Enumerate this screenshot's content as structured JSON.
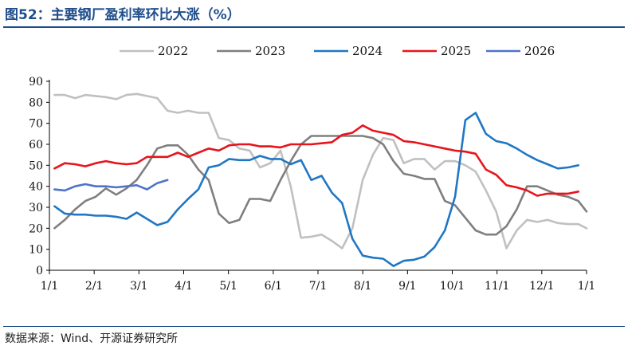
{
  "figure": {
    "title": "图52：主要钢厂盈利率环比大涨（%）",
    "source": "数据来源：Wind、开源证券研究所"
  },
  "chart_data": {
    "type": "line",
    "title": "",
    "xlabel": "",
    "ylabel": "",
    "x_tick_labels": [
      "1/1",
      "2/1",
      "3/1",
      "4/1",
      "5/1",
      "6/1",
      "7/1",
      "8/1",
      "9/1",
      "10/1",
      "11/1",
      "12/1",
      "1/1"
    ],
    "y_ticks": [
      0,
      10,
      20,
      30,
      40,
      50,
      60,
      70,
      80,
      90
    ],
    "ylim": [
      0,
      90
    ],
    "x_unit": "week of year",
    "xlim": [
      0,
      52.3
    ],
    "grid": false,
    "legend_position": "top",
    "series": [
      {
        "name": "2022",
        "color": "#c0c0c0",
        "points": [
          [
            0.5,
            83.5
          ],
          [
            1.5,
            83.5
          ],
          [
            2.5,
            82
          ],
          [
            3.5,
            83.5
          ],
          [
            4.5,
            83
          ],
          [
            5.5,
            82.5
          ],
          [
            6.5,
            81.5
          ],
          [
            7.5,
            83.5
          ],
          [
            8.5,
            84
          ],
          [
            9.5,
            83
          ],
          [
            10.5,
            82
          ],
          [
            11.5,
            76
          ],
          [
            12.5,
            75
          ],
          [
            13.5,
            76
          ],
          [
            14.5,
            75
          ],
          [
            15.5,
            75
          ],
          [
            16.5,
            63
          ],
          [
            17.5,
            62
          ],
          [
            18.5,
            58
          ],
          [
            19.5,
            57
          ],
          [
            20.5,
            49
          ],
          [
            21.5,
            51
          ],
          [
            22.5,
            57
          ],
          [
            23.5,
            40
          ],
          [
            24.5,
            15.5
          ],
          [
            25.5,
            16
          ],
          [
            26.5,
            17
          ],
          [
            27.5,
            14
          ],
          [
            28.5,
            10.5
          ],
          [
            29.5,
            20
          ],
          [
            30.5,
            43
          ],
          [
            31.5,
            55
          ],
          [
            32.5,
            63
          ],
          [
            33.5,
            62
          ],
          [
            34.5,
            51
          ],
          [
            35.5,
            53
          ],
          [
            36.5,
            53
          ],
          [
            37.5,
            48
          ],
          [
            38.5,
            52
          ],
          [
            39.5,
            52
          ],
          [
            40.5,
            50
          ],
          [
            41.5,
            47
          ],
          [
            42.5,
            38
          ],
          [
            43.5,
            28
          ],
          [
            44.5,
            10.5
          ],
          [
            45.5,
            19
          ],
          [
            46.5,
            24
          ],
          [
            47.5,
            23
          ],
          [
            48.5,
            24
          ],
          [
            49.5,
            22.5
          ],
          [
            50.5,
            22
          ],
          [
            51.5,
            22
          ],
          [
            52.3,
            20
          ]
        ]
      },
      {
        "name": "2023",
        "color": "#7f7f7f",
        "points": [
          [
            0.5,
            20
          ],
          [
            1.5,
            24
          ],
          [
            2.5,
            29
          ],
          [
            3.5,
            33
          ],
          [
            4.5,
            35
          ],
          [
            5.5,
            39
          ],
          [
            6.5,
            36
          ],
          [
            7.5,
            39
          ],
          [
            8.5,
            43
          ],
          [
            9.5,
            50
          ],
          [
            10.5,
            58
          ],
          [
            11.5,
            59.5
          ],
          [
            12.5,
            59.5
          ],
          [
            13.5,
            55
          ],
          [
            14.5,
            48
          ],
          [
            15.5,
            43
          ],
          [
            16.5,
            27
          ],
          [
            17.5,
            22.5
          ],
          [
            18.5,
            24
          ],
          [
            19.5,
            34
          ],
          [
            20.5,
            34
          ],
          [
            21.5,
            33
          ],
          [
            22.5,
            43
          ],
          [
            23.5,
            52
          ],
          [
            24.5,
            60
          ],
          [
            25.5,
            64
          ],
          [
            26.5,
            64
          ],
          [
            27.5,
            64
          ],
          [
            28.5,
            64
          ],
          [
            29.5,
            64
          ],
          [
            30.5,
            64
          ],
          [
            31.5,
            63
          ],
          [
            32.5,
            60
          ],
          [
            33.5,
            52
          ],
          [
            34.5,
            46
          ],
          [
            35.5,
            45
          ],
          [
            36.5,
            43.5
          ],
          [
            37.5,
            43.5
          ],
          [
            38.5,
            33
          ],
          [
            39.5,
            31
          ],
          [
            40.5,
            25
          ],
          [
            41.5,
            19
          ],
          [
            42.5,
            17
          ],
          [
            43.5,
            17
          ],
          [
            44.5,
            21
          ],
          [
            45.5,
            29
          ],
          [
            46.5,
            40
          ],
          [
            47.5,
            40
          ],
          [
            48.5,
            38
          ],
          [
            49.5,
            36
          ],
          [
            50.5,
            35
          ],
          [
            51.5,
            33
          ],
          [
            52.3,
            28
          ]
        ]
      },
      {
        "name": "2024",
        "color": "#1f77c4",
        "points": [
          [
            0.5,
            30.5
          ],
          [
            1.5,
            27
          ],
          [
            2.5,
            26.5
          ],
          [
            3.5,
            26.5
          ],
          [
            4.5,
            26
          ],
          [
            5.5,
            26
          ],
          [
            6.5,
            25.5
          ],
          [
            7.5,
            24.5
          ],
          [
            8.5,
            27.5
          ],
          [
            9.5,
            24.5
          ],
          [
            10.5,
            21.5
          ],
          [
            11.5,
            23
          ],
          [
            12.5,
            29
          ],
          [
            13.5,
            34
          ],
          [
            14.5,
            38.5
          ],
          [
            15.5,
            49
          ],
          [
            16.5,
            50
          ],
          [
            17.5,
            53
          ],
          [
            18.5,
            52.5
          ],
          [
            19.5,
            52.5
          ],
          [
            20.5,
            54.5
          ],
          [
            21.5,
            53
          ],
          [
            22.5,
            53
          ],
          [
            23.5,
            50.5
          ],
          [
            24.5,
            52.5
          ],
          [
            25.5,
            43
          ],
          [
            26.5,
            45
          ],
          [
            27.5,
            37
          ],
          [
            28.5,
            32
          ],
          [
            29.5,
            15
          ],
          [
            30.5,
            7
          ],
          [
            31.5,
            6
          ],
          [
            32.5,
            5.5
          ],
          [
            33.5,
            2
          ],
          [
            34.5,
            4.5
          ],
          [
            35.5,
            5
          ],
          [
            36.5,
            6.5
          ],
          [
            37.5,
            11
          ],
          [
            38.5,
            19
          ],
          [
            39.5,
            35
          ],
          [
            40.5,
            71.5
          ],
          [
            41.5,
            75
          ],
          [
            42.5,
            65
          ],
          [
            43.5,
            61.5
          ],
          [
            44.5,
            60.5
          ],
          [
            45.5,
            58
          ],
          [
            46.5,
            55
          ],
          [
            47.5,
            52.5
          ],
          [
            48.5,
            50.5
          ],
          [
            49.5,
            48.5
          ],
          [
            50.5,
            49
          ],
          [
            51.5,
            50
          ]
        ]
      },
      {
        "name": "2025",
        "color": "#e8141b",
        "points": [
          [
            0.5,
            48.5
          ],
          [
            1.5,
            51
          ],
          [
            2.5,
            50.5
          ],
          [
            3.5,
            49.5
          ],
          [
            4.5,
            51
          ],
          [
            5.5,
            52
          ],
          [
            6.5,
            51
          ],
          [
            7.5,
            50.5
          ],
          [
            8.5,
            51
          ],
          [
            9.5,
            54
          ],
          [
            10.5,
            54
          ],
          [
            11.5,
            54
          ],
          [
            12.5,
            56
          ],
          [
            13.5,
            54
          ],
          [
            14.5,
            56
          ],
          [
            15.5,
            58
          ],
          [
            16.5,
            57
          ],
          [
            17.5,
            59.5
          ],
          [
            18.5,
            60
          ],
          [
            19.5,
            60
          ],
          [
            20.5,
            59
          ],
          [
            21.5,
            59
          ],
          [
            22.5,
            58.5
          ],
          [
            23.5,
            60
          ],
          [
            24.5,
            60
          ],
          [
            25.5,
            60
          ],
          [
            26.5,
            60.5
          ],
          [
            27.5,
            61
          ],
          [
            28.5,
            64.5
          ],
          [
            29.5,
            65.5
          ],
          [
            30.5,
            69
          ],
          [
            31.5,
            66.5
          ],
          [
            32.5,
            65.5
          ],
          [
            33.5,
            64.5
          ],
          [
            34.5,
            61.5
          ],
          [
            35.5,
            61
          ],
          [
            36.5,
            60
          ],
          [
            37.5,
            59
          ],
          [
            38.5,
            58
          ],
          [
            39.5,
            57
          ],
          [
            40.5,
            56.5
          ],
          [
            41.5,
            55.5
          ],
          [
            42.5,
            48
          ],
          [
            43.5,
            45.5
          ],
          [
            44.5,
            40.5
          ],
          [
            45.5,
            39.5
          ],
          [
            46.5,
            38
          ],
          [
            47.5,
            35.5
          ],
          [
            48.5,
            36.5
          ],
          [
            49.5,
            36.5
          ],
          [
            50.5,
            36.5
          ],
          [
            51.5,
            37.5
          ]
        ]
      },
      {
        "name": "2026",
        "color": "#4f73c8",
        "points": [
          [
            0.5,
            38.5
          ],
          [
            1.5,
            38
          ],
          [
            2.5,
            40
          ],
          [
            3.5,
            41
          ],
          [
            4.5,
            40
          ],
          [
            5.5,
            40
          ],
          [
            6.5,
            39.5
          ],
          [
            7.5,
            40
          ],
          [
            8.5,
            40.5
          ],
          [
            9.5,
            38.5
          ],
          [
            10.5,
            41.5
          ],
          [
            11.5,
            43
          ]
        ]
      }
    ]
  }
}
